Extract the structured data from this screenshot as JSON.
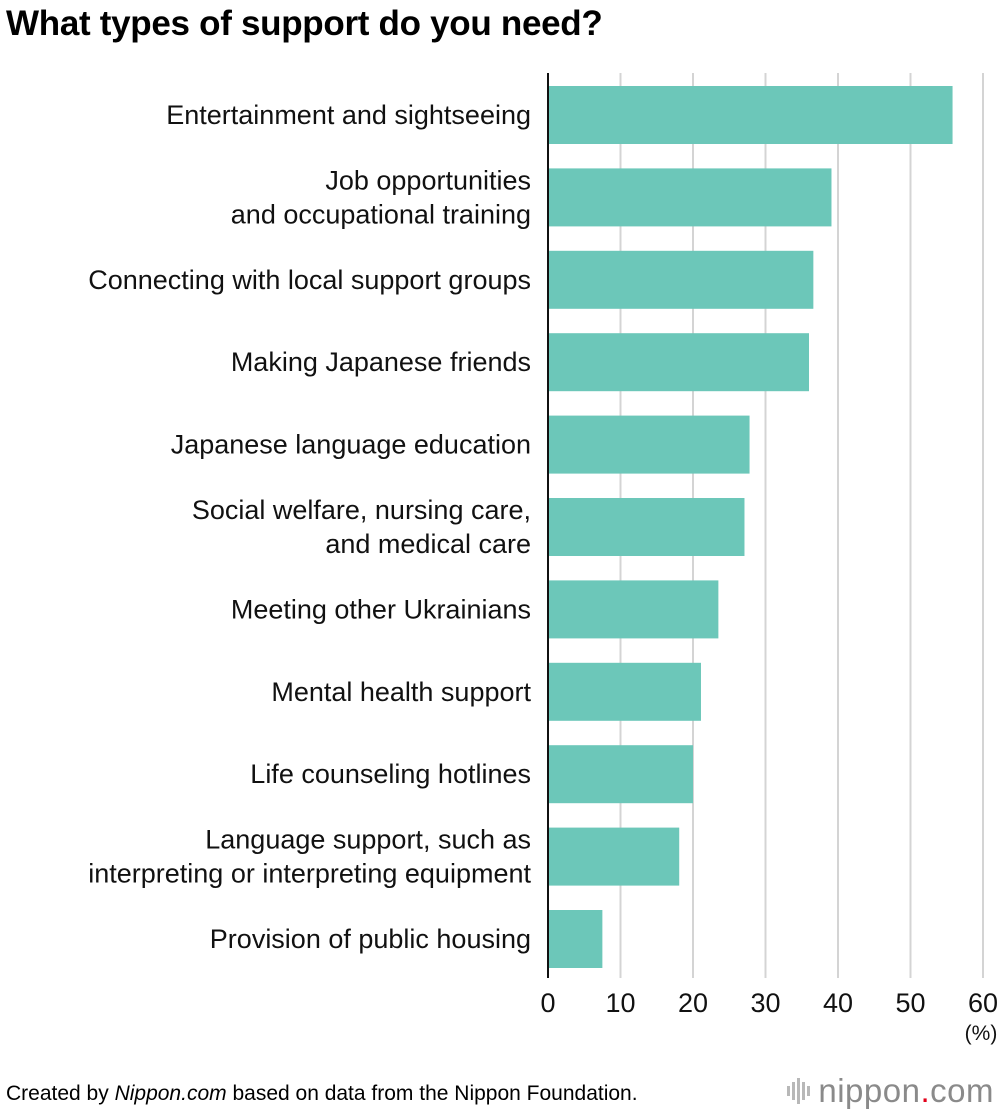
{
  "title": "What types of support do you need?",
  "footer": {
    "prefix": "Created by ",
    "source_name": "Nippon.com",
    "suffix": " based on data from the Nippon Foundation."
  },
  "logo": {
    "name": "nippon",
    "dot": ".",
    "tld": "com"
  },
  "chart_data": {
    "type": "bar",
    "orientation": "horizontal",
    "title": "What types of support do you need?",
    "categories": [
      "Entertainment and sightseeing",
      "Job opportunities\nand occupational training",
      "Connecting with local support groups",
      "Making Japanese friends",
      "Japanese language education",
      "Social welfare, nursing care,\nand medical care",
      "Meeting other Ukrainians",
      "Mental health support",
      "Life counseling hotlines",
      "Language support, such as\ninterpreting or interpreting equipment",
      "Provision of public housing"
    ],
    "values": [
      55.8,
      39.1,
      36.6,
      36.0,
      27.8,
      27.1,
      23.5,
      21.1,
      20.0,
      18.1,
      7.5
    ],
    "xlim": [
      0,
      60
    ],
    "xticks": [
      "0",
      "10",
      "20",
      "30",
      "40",
      "50",
      "60"
    ],
    "unit_label": "(%)",
    "bar_color": "#6cc7b9",
    "grid": true
  }
}
